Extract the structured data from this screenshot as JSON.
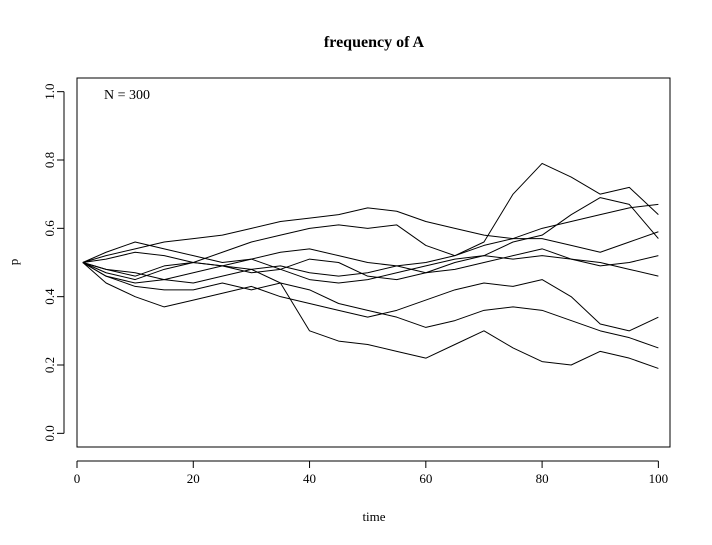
{
  "chart_data": {
    "type": "line",
    "title": "frequency of A",
    "xlabel": "time",
    "ylabel": "p",
    "xlim": [
      0,
      102
    ],
    "ylim": [
      -0.04,
      1.04
    ],
    "xticks": [
      0,
      20,
      40,
      60,
      80,
      100
    ],
    "xtick_labels": [
      "0",
      "20",
      "40",
      "60",
      "80",
      "100"
    ],
    "yticks": [
      0.0,
      0.2,
      0.4,
      0.6,
      0.8,
      1.0
    ],
    "ytick_labels": [
      "0.0",
      "0.2",
      "0.4",
      "0.6",
      "0.8",
      "1.0"
    ],
    "annotation": "N = 300",
    "grid": false,
    "line_color": "#000000",
    "x": [
      1,
      5,
      10,
      15,
      20,
      25,
      30,
      35,
      40,
      45,
      50,
      55,
      60,
      65,
      70,
      75,
      80,
      85,
      90,
      95,
      100
    ],
    "series": [
      {
        "values": [
          0.5,
          0.52,
          0.54,
          0.56,
          0.57,
          0.58,
          0.6,
          0.62,
          0.63,
          0.64,
          0.66,
          0.65,
          0.62,
          0.6,
          0.58,
          0.57,
          0.6,
          0.62,
          0.64,
          0.66,
          0.67
        ]
      },
      {
        "values": [
          0.5,
          0.47,
          0.45,
          0.48,
          0.5,
          0.53,
          0.56,
          0.58,
          0.6,
          0.61,
          0.6,
          0.61,
          0.55,
          0.52,
          0.56,
          0.7,
          0.79,
          0.75,
          0.7,
          0.72,
          0.64
        ]
      },
      {
        "values": [
          0.5,
          0.51,
          0.53,
          0.52,
          0.5,
          0.49,
          0.47,
          0.48,
          0.51,
          0.5,
          0.46,
          0.45,
          0.47,
          0.5,
          0.52,
          0.56,
          0.58,
          0.64,
          0.69,
          0.67,
          0.57
        ]
      },
      {
        "values": [
          0.5,
          0.48,
          0.46,
          0.49,
          0.5,
          0.49,
          0.48,
          0.49,
          0.47,
          0.46,
          0.47,
          0.49,
          0.5,
          0.52,
          0.55,
          0.57,
          0.57,
          0.55,
          0.53,
          0.56,
          0.59
        ]
      },
      {
        "values": [
          0.5,
          0.53,
          0.56,
          0.54,
          0.52,
          0.5,
          0.51,
          0.48,
          0.45,
          0.44,
          0.45,
          0.47,
          0.49,
          0.51,
          0.52,
          0.51,
          0.52,
          0.51,
          0.49,
          0.5,
          0.52
        ]
      },
      {
        "values": [
          0.5,
          0.46,
          0.44,
          0.45,
          0.47,
          0.49,
          0.51,
          0.53,
          0.54,
          0.52,
          0.5,
          0.49,
          0.47,
          0.48,
          0.5,
          0.52,
          0.54,
          0.51,
          0.5,
          0.48,
          0.46
        ]
      },
      {
        "values": [
          0.5,
          0.44,
          0.4,
          0.37,
          0.39,
          0.41,
          0.43,
          0.4,
          0.38,
          0.36,
          0.34,
          0.36,
          0.39,
          0.42,
          0.44,
          0.43,
          0.45,
          0.4,
          0.32,
          0.3,
          0.34
        ]
      },
      {
        "values": [
          0.5,
          0.46,
          0.43,
          0.42,
          0.42,
          0.44,
          0.42,
          0.44,
          0.42,
          0.38,
          0.36,
          0.34,
          0.31,
          0.33,
          0.36,
          0.37,
          0.36,
          0.33,
          0.3,
          0.28,
          0.25
        ]
      },
      {
        "values": [
          0.5,
          0.48,
          0.47,
          0.45,
          0.44,
          0.46,
          0.48,
          0.44,
          0.3,
          0.27,
          0.26,
          0.24,
          0.22,
          0.26,
          0.3,
          0.25,
          0.21,
          0.2,
          0.24,
          0.22,
          0.19
        ]
      }
    ]
  }
}
